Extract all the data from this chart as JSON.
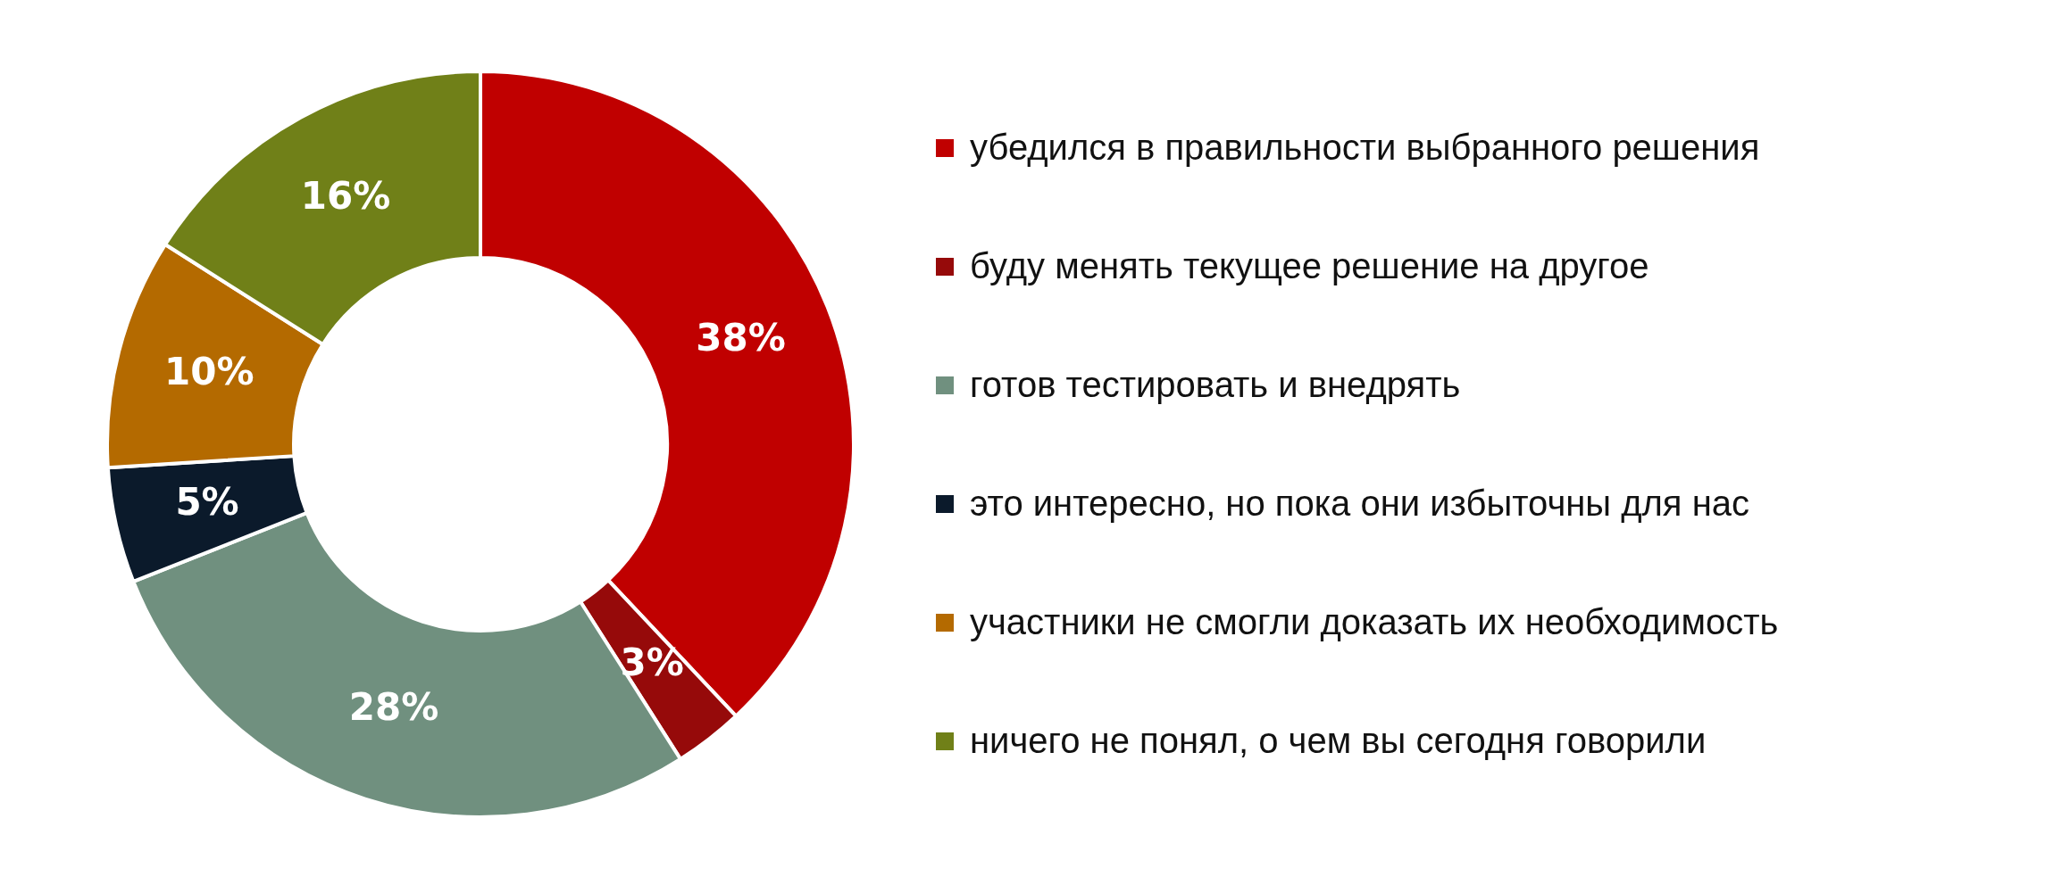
{
  "chart_data": {
    "type": "donut",
    "categories": [
      "убедился в правильности выбранного решения",
      "буду менять текущее решение на другое",
      "готов тестировать и внедрять",
      "это интересно, но пока они избыточны для нас",
      "участники не смогли доказать их необходимость",
      "ничего не понял, о чем вы сегодня говорили"
    ],
    "values": [
      38,
      3,
      28,
      5,
      10,
      16
    ],
    "colors": [
      "#c00000",
      "#960a0a",
      "#70907f",
      "#0b1a2b",
      "#b46a00",
      "#708018"
    ],
    "value_labels": [
      "38%",
      "3%",
      "28%",
      "5%",
      "10%",
      "16%"
    ],
    "legend": "right"
  }
}
